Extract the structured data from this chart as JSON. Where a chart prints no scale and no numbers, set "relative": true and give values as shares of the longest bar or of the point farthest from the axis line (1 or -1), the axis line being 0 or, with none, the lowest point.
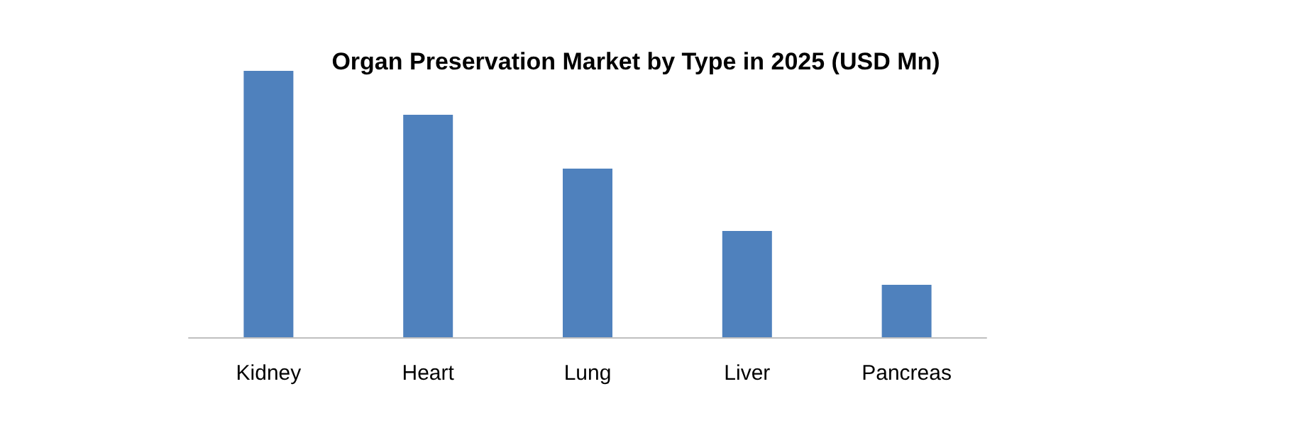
{
  "chart_data": {
    "type": "bar",
    "title": "Organ Preservation Market by Type in 2025 (USD Mn)",
    "categories": [
      "Kidney",
      "Heart",
      "Lung",
      "Liver",
      "Pancreas"
    ],
    "values": [
      1,
      0.835,
      0.633,
      0.399,
      0.197
    ],
    "color": "#4f81bd",
    "relative": true
  }
}
